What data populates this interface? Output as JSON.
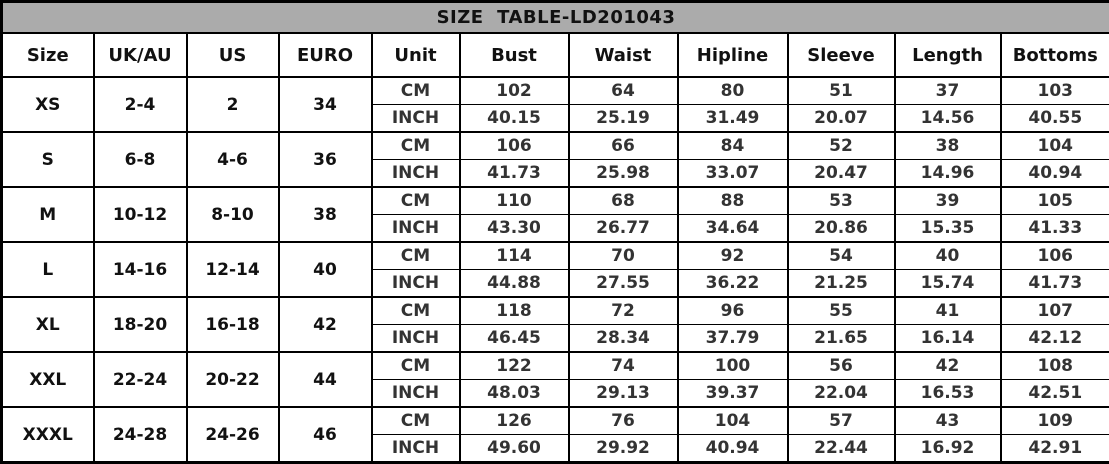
{
  "title": "SIZE  TABLE-LD201043",
  "columns": [
    "Size",
    "UK/AU",
    "US",
    "EURO",
    "Unit",
    "Bust",
    "Waist",
    "Hipline",
    "Sleeve",
    "Length",
    "Bottoms"
  ],
  "unit_labels": {
    "cm": "CM",
    "inch": "INCH"
  },
  "sizes": [
    {
      "size": "XS",
      "uk_au": "2-4",
      "us": "2",
      "euro": "34",
      "cm": [
        "102",
        "64",
        "80",
        "51",
        "37",
        "103"
      ],
      "inch": [
        "40.15",
        "25.19",
        "31.49",
        "20.07",
        "14.56",
        "40.55"
      ]
    },
    {
      "size": "S",
      "uk_au": "6-8",
      "us": "4-6",
      "euro": "36",
      "cm": [
        "106",
        "66",
        "84",
        "52",
        "38",
        "104"
      ],
      "inch": [
        "41.73",
        "25.98",
        "33.07",
        "20.47",
        "14.96",
        "40.94"
      ]
    },
    {
      "size": "M",
      "uk_au": "10-12",
      "us": "8-10",
      "euro": "38",
      "cm": [
        "110",
        "68",
        "88",
        "53",
        "39",
        "105"
      ],
      "inch": [
        "43.30",
        "26.77",
        "34.64",
        "20.86",
        "15.35",
        "41.33"
      ]
    },
    {
      "size": "L",
      "uk_au": "14-16",
      "us": "12-14",
      "euro": "40",
      "cm": [
        "114",
        "70",
        "92",
        "54",
        "40",
        "106"
      ],
      "inch": [
        "44.88",
        "27.55",
        "36.22",
        "21.25",
        "15.74",
        "41.73"
      ]
    },
    {
      "size": "XL",
      "uk_au": "18-20",
      "us": "16-18",
      "euro": "42",
      "cm": [
        "118",
        "72",
        "96",
        "55",
        "41",
        "107"
      ],
      "inch": [
        "46.45",
        "28.34",
        "37.79",
        "21.65",
        "16.14",
        "42.12"
      ]
    },
    {
      "size": "XXL",
      "uk_au": "22-24",
      "us": "20-22",
      "euro": "44",
      "cm": [
        "122",
        "74",
        "100",
        "56",
        "42",
        "108"
      ],
      "inch": [
        "48.03",
        "29.13",
        "39.37",
        "22.04",
        "16.53",
        "42.51"
      ]
    },
    {
      "size": "XXXL",
      "uk_au": "24-28",
      "us": "24-26",
      "euro": "46",
      "cm": [
        "126",
        "76",
        "104",
        "57",
        "43",
        "109"
      ],
      "inch": [
        "49.60",
        "29.92",
        "40.94",
        "22.44",
        "16.92",
        "42.91"
      ]
    }
  ],
  "colors": {
    "title_bg": "#ababab",
    "border": "#000000",
    "header_text": "#111111",
    "value_text": "#333333",
    "background": "#ffffff"
  }
}
